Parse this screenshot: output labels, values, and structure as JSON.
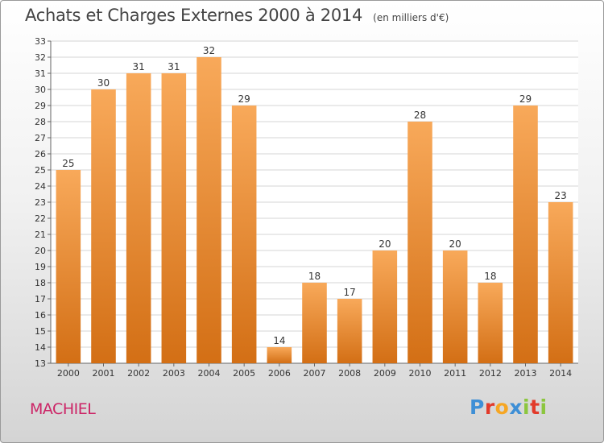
{
  "header": {
    "title": "Achats et Charges Externes 2000 à 2014",
    "subtitle": "(en milliers d'€)"
  },
  "footer": {
    "place": "MACHIEL",
    "logo_text": "Proxiti",
    "logo_colors": [
      "#3e8fd6",
      "#e23a2a",
      "#f6a623",
      "#3e8fd6",
      "#8cc63f",
      "#e23a2a",
      "#8cc63f"
    ]
  },
  "colors": {
    "bar_light": "#f8a95a",
    "bar_dark": "#d36f15",
    "grid": "#d6d6d6",
    "axis_text": "#333333"
  },
  "chart_data": {
    "type": "bar",
    "title": "Achats et Charges Externes 2000 à 2014",
    "subtitle": "(en milliers d'€)",
    "xlabel": "",
    "ylabel": "",
    "categories": [
      "2000",
      "2001",
      "2002",
      "2003",
      "2004",
      "2005",
      "2006",
      "2007",
      "2008",
      "2009",
      "2010",
      "2011",
      "2012",
      "2013",
      "2014"
    ],
    "values": [
      25,
      30,
      31,
      31,
      32,
      29,
      14,
      18,
      17,
      20,
      28,
      20,
      18,
      29,
      23
    ],
    "ylim": [
      13,
      33
    ],
    "yticks": [
      13,
      14,
      15,
      16,
      17,
      18,
      19,
      20,
      21,
      22,
      23,
      24,
      25,
      26,
      27,
      28,
      29,
      30,
      31,
      32,
      33
    ],
    "grid": true,
    "legend": "none"
  }
}
